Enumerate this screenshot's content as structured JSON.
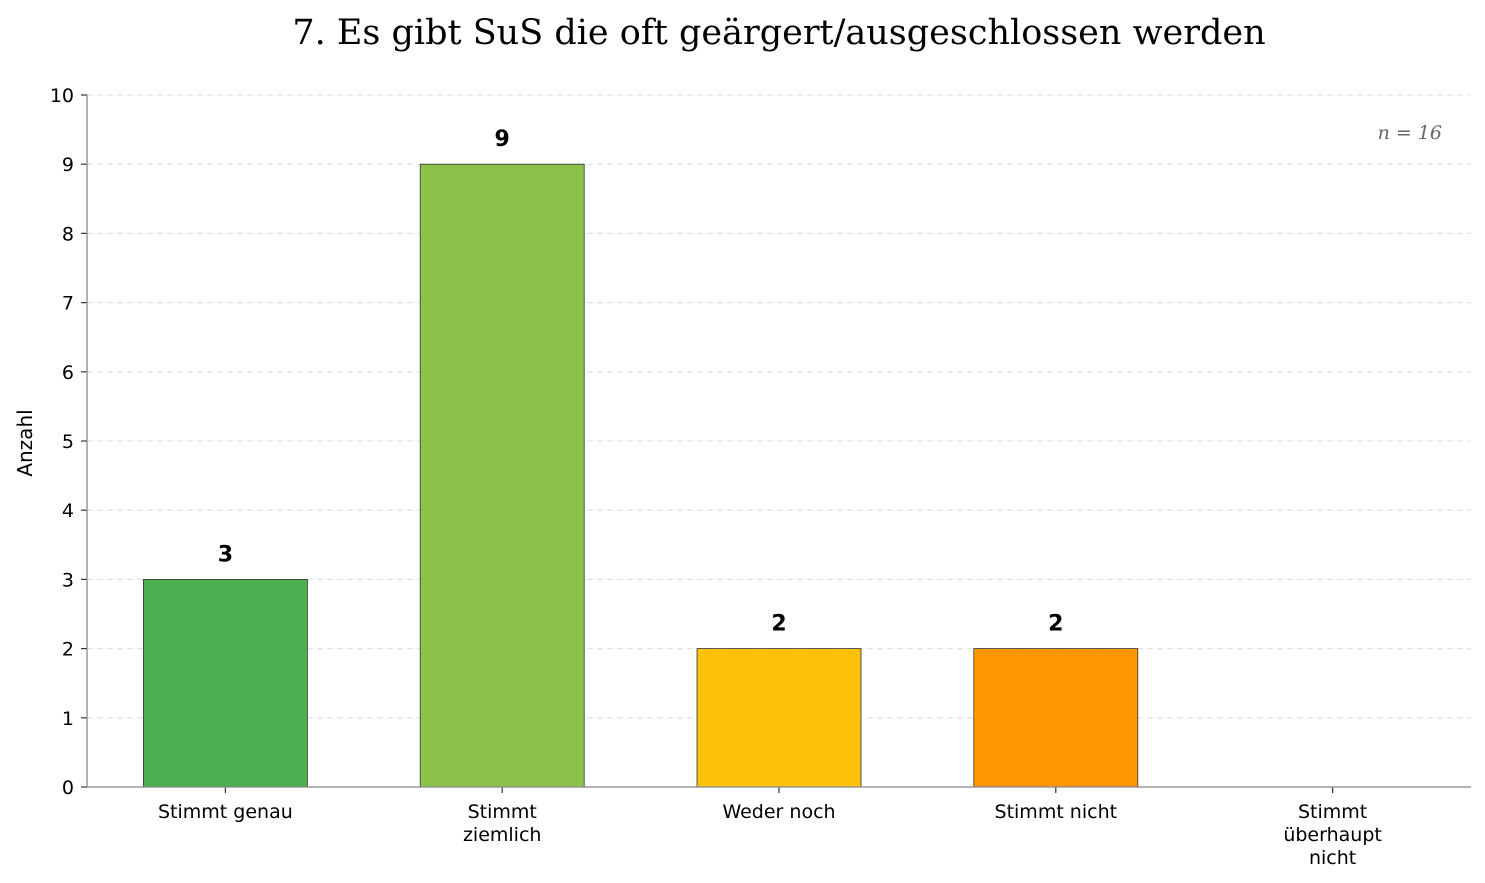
{
  "chart_data": {
    "type": "bar",
    "title": "7. Es gibt SuS die oft geärgert/ausgeschlossen werden",
    "xlabel": "",
    "ylabel": "Anzahl",
    "categories": [
      [
        "Stimmt genau"
      ],
      [
        "Stimmt",
        "ziemlich"
      ],
      [
        "Weder noch"
      ],
      [
        "Stimmt nicht"
      ],
      [
        "Stimmt",
        "überhaupt",
        "nicht"
      ]
    ],
    "values": [
      3,
      9,
      2,
      2,
      0
    ],
    "colors": [
      "#4caf50",
      "#8bc34a",
      "#ffc107",
      "#ff9800",
      "#f44336"
    ],
    "ylim": [
      0,
      10
    ],
    "yticks": [
      0,
      1,
      2,
      3,
      4,
      5,
      6,
      7,
      8,
      9,
      10
    ],
    "grid": "horizontal dashed",
    "annotation": "n = 16"
  }
}
